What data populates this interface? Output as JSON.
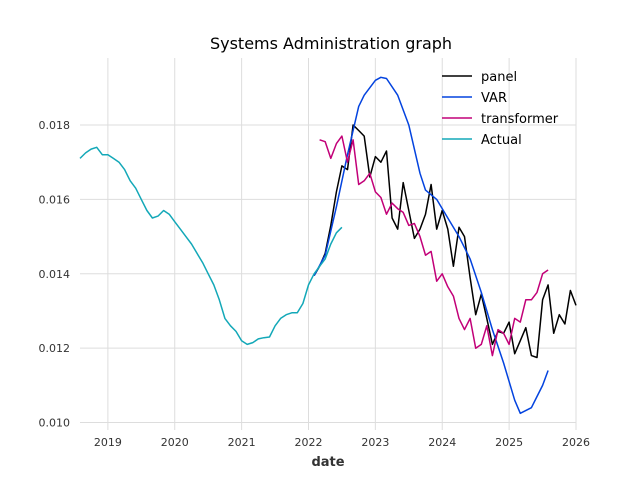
{
  "chart_data": {
    "type": "line",
    "title": "Systems Administration graph",
    "xlabel": "date",
    "ylabel": "",
    "xlim": [
      "2018-08",
      "2026-01"
    ],
    "ylim": [
      0.0098,
      0.0198
    ],
    "xticks": [
      {
        "date": "2019-01",
        "label": "2019"
      },
      {
        "date": "2020-01",
        "label": "2020"
      },
      {
        "date": "2021-01",
        "label": "2021"
      },
      {
        "date": "2022-01",
        "label": "2022"
      },
      {
        "date": "2023-01",
        "label": "2023"
      },
      {
        "date": "2024-01",
        "label": "2024"
      },
      {
        "date": "2025-01",
        "label": "2025"
      },
      {
        "date": "2026-01",
        "label": "2026"
      }
    ],
    "yticks": [
      {
        "value": 0.01,
        "label": "0.010"
      },
      {
        "value": 0.012,
        "label": "0.012"
      },
      {
        "value": 0.014,
        "label": "0.014"
      },
      {
        "value": 0.016,
        "label": "0.016"
      },
      {
        "value": 0.018,
        "label": "0.018"
      }
    ],
    "grid": true,
    "legend_position": "top-right",
    "series": [
      {
        "name": "panel",
        "color": "#000000",
        "points": [
          [
            "2022-02",
            0.01395
          ],
          [
            "2022-03",
            0.0142
          ],
          [
            "2022-04",
            0.01455
          ],
          [
            "2022-05",
            0.0153
          ],
          [
            "2022-06",
            0.0162
          ],
          [
            "2022-07",
            0.0169
          ],
          [
            "2022-08",
            0.0168
          ],
          [
            "2022-09",
            0.018
          ],
          [
            "2022-10",
            0.01785
          ],
          [
            "2022-11",
            0.0177
          ],
          [
            "2022-12",
            0.0166
          ],
          [
            "2023-01",
            0.01715
          ],
          [
            "2023-02",
            0.017
          ],
          [
            "2023-03",
            0.0173
          ],
          [
            "2023-04",
            0.0155
          ],
          [
            "2023-05",
            0.0152
          ],
          [
            "2023-06",
            0.01645
          ],
          [
            "2023-07",
            0.0157
          ],
          [
            "2023-08",
            0.01495
          ],
          [
            "2023-09",
            0.0152
          ],
          [
            "2023-10",
            0.0156
          ],
          [
            "2023-11",
            0.0164
          ],
          [
            "2023-12",
            0.0152
          ],
          [
            "2024-01",
            0.0157
          ],
          [
            "2024-02",
            0.0152
          ],
          [
            "2024-03",
            0.0142
          ],
          [
            "2024-04",
            0.01525
          ],
          [
            "2024-05",
            0.015
          ],
          [
            "2024-06",
            0.0139
          ],
          [
            "2024-07",
            0.0129
          ],
          [
            "2024-08",
            0.01345
          ],
          [
            "2024-09",
            0.0128
          ],
          [
            "2024-10",
            0.0121
          ],
          [
            "2024-11",
            0.01245
          ],
          [
            "2024-12",
            0.0124
          ],
          [
            "2025-01",
            0.0127
          ],
          [
            "2025-02",
            0.01185
          ],
          [
            "2025-03",
            0.0122
          ],
          [
            "2025-04",
            0.01255
          ],
          [
            "2025-05",
            0.0118
          ],
          [
            "2025-06",
            0.01175
          ],
          [
            "2025-07",
            0.0133
          ],
          [
            "2025-08",
            0.0137
          ],
          [
            "2025-09",
            0.0124
          ],
          [
            "2025-10",
            0.0129
          ],
          [
            "2025-11",
            0.01265
          ],
          [
            "2025-12",
            0.01355
          ],
          [
            "2026-01",
            0.01315
          ]
        ]
      },
      {
        "name": "VAR",
        "color": "#0343df",
        "points": [
          [
            "2022-02",
            0.01395
          ],
          [
            "2022-04",
            0.0145
          ],
          [
            "2022-06",
            0.0158
          ],
          [
            "2022-08",
            0.0172
          ],
          [
            "2022-10",
            0.0185
          ],
          [
            "2022-11",
            0.0188
          ],
          [
            "2023-01",
            0.0192
          ],
          [
            "2023-02",
            0.01928
          ],
          [
            "2023-03",
            0.01925
          ],
          [
            "2023-05",
            0.0188
          ],
          [
            "2023-07",
            0.018
          ],
          [
            "2023-09",
            0.0167
          ],
          [
            "2023-10",
            0.01625
          ],
          [
            "2023-12",
            0.016
          ],
          [
            "2024-02",
            0.0155
          ],
          [
            "2024-04",
            0.015
          ],
          [
            "2024-06",
            0.0144
          ],
          [
            "2024-08",
            0.0135
          ],
          [
            "2024-10",
            0.0125
          ],
          [
            "2024-12",
            0.0116
          ],
          [
            "2025-02",
            0.0106
          ],
          [
            "2025-03",
            0.01025
          ],
          [
            "2025-05",
            0.0104
          ],
          [
            "2025-06",
            0.0107
          ],
          [
            "2025-07",
            0.011
          ],
          [
            "2025-08",
            0.0114
          ]
        ]
      },
      {
        "name": "transformer",
        "color": "#c20078",
        "points": [
          [
            "2022-03",
            0.0176
          ],
          [
            "2022-04",
            0.01755
          ],
          [
            "2022-05",
            0.0171
          ],
          [
            "2022-06",
            0.0175
          ],
          [
            "2022-07",
            0.0177
          ],
          [
            "2022-08",
            0.017
          ],
          [
            "2022-09",
            0.0176
          ],
          [
            "2022-10",
            0.0164
          ],
          [
            "2022-11",
            0.0165
          ],
          [
            "2022-12",
            0.0167
          ],
          [
            "2023-01",
            0.0162
          ],
          [
            "2023-02",
            0.01605
          ],
          [
            "2023-03",
            0.0156
          ],
          [
            "2023-04",
            0.0159
          ],
          [
            "2023-05",
            0.01575
          ],
          [
            "2023-06",
            0.01565
          ],
          [
            "2023-07",
            0.0153
          ],
          [
            "2023-08",
            0.01535
          ],
          [
            "2023-09",
            0.015
          ],
          [
            "2023-10",
            0.0145
          ],
          [
            "2023-11",
            0.0146
          ],
          [
            "2023-12",
            0.0138
          ],
          [
            "2024-01",
            0.014
          ],
          [
            "2024-02",
            0.01365
          ],
          [
            "2024-03",
            0.0134
          ],
          [
            "2024-04",
            0.0128
          ],
          [
            "2024-05",
            0.0125
          ],
          [
            "2024-06",
            0.0128
          ],
          [
            "2024-07",
            0.012
          ],
          [
            "2024-08",
            0.0121
          ],
          [
            "2024-09",
            0.0126
          ],
          [
            "2024-10",
            0.0118
          ],
          [
            "2024-11",
            0.0125
          ],
          [
            "2024-12",
            0.0124
          ],
          [
            "2025-01",
            0.0121
          ],
          [
            "2025-02",
            0.0128
          ],
          [
            "2025-03",
            0.0127
          ],
          [
            "2025-04",
            0.0133
          ],
          [
            "2025-05",
            0.0133
          ],
          [
            "2025-06",
            0.0135
          ],
          [
            "2025-07",
            0.014
          ],
          [
            "2025-08",
            0.0141
          ]
        ]
      },
      {
        "name": "Actual",
        "color": "#13a8b8",
        "points": [
          [
            "2018-08",
            0.0171
          ],
          [
            "2018-09",
            0.01725
          ],
          [
            "2018-10",
            0.01735
          ],
          [
            "2018-11",
            0.0174
          ],
          [
            "2018-12",
            0.0172
          ],
          [
            "2019-01",
            0.0172
          ],
          [
            "2019-02",
            0.0171
          ],
          [
            "2019-03",
            0.017
          ],
          [
            "2019-04",
            0.0168
          ],
          [
            "2019-05",
            0.0165
          ],
          [
            "2019-06",
            0.0163
          ],
          [
            "2019-07",
            0.016
          ],
          [
            "2019-08",
            0.0157
          ],
          [
            "2019-09",
            0.0155
          ],
          [
            "2019-10",
            0.01555
          ],
          [
            "2019-11",
            0.0157
          ],
          [
            "2019-12",
            0.0156
          ],
          [
            "2020-01",
            0.0154
          ],
          [
            "2020-02",
            0.0152
          ],
          [
            "2020-03",
            0.015
          ],
          [
            "2020-04",
            0.0148
          ],
          [
            "2020-05",
            0.01455
          ],
          [
            "2020-06",
            0.0143
          ],
          [
            "2020-07",
            0.014
          ],
          [
            "2020-08",
            0.0137
          ],
          [
            "2020-09",
            0.0133
          ],
          [
            "2020-10",
            0.0128
          ],
          [
            "2020-11",
            0.0126
          ],
          [
            "2020-12",
            0.01245
          ],
          [
            "2021-01",
            0.0122
          ],
          [
            "2021-02",
            0.0121
          ],
          [
            "2021-03",
            0.01215
          ],
          [
            "2021-04",
            0.01225
          ],
          [
            "2021-05",
            0.01228
          ],
          [
            "2021-06",
            0.0123
          ],
          [
            "2021-07",
            0.0126
          ],
          [
            "2021-08",
            0.0128
          ],
          [
            "2021-09",
            0.0129
          ],
          [
            "2021-10",
            0.01295
          ],
          [
            "2021-11",
            0.01295
          ],
          [
            "2021-12",
            0.0132
          ],
          [
            "2022-01",
            0.0137
          ],
          [
            "2022-02",
            0.014
          ],
          [
            "2022-03",
            0.0142
          ],
          [
            "2022-04",
            0.0144
          ],
          [
            "2022-05",
            0.0148
          ],
          [
            "2022-06",
            0.0151
          ],
          [
            "2022-07",
            0.01525
          ]
        ]
      }
    ]
  }
}
